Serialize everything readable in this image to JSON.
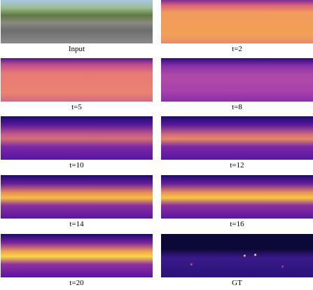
{
  "panels": [
    {
      "caption": "Input"
    },
    {
      "caption": "t=2"
    },
    {
      "caption": "t=5"
    },
    {
      "caption": "t=8"
    },
    {
      "caption": "t=10"
    },
    {
      "caption": "t=12"
    },
    {
      "caption": "t=14"
    },
    {
      "caption": "t=16"
    },
    {
      "caption": "t=20"
    },
    {
      "caption": "GT"
    }
  ]
}
